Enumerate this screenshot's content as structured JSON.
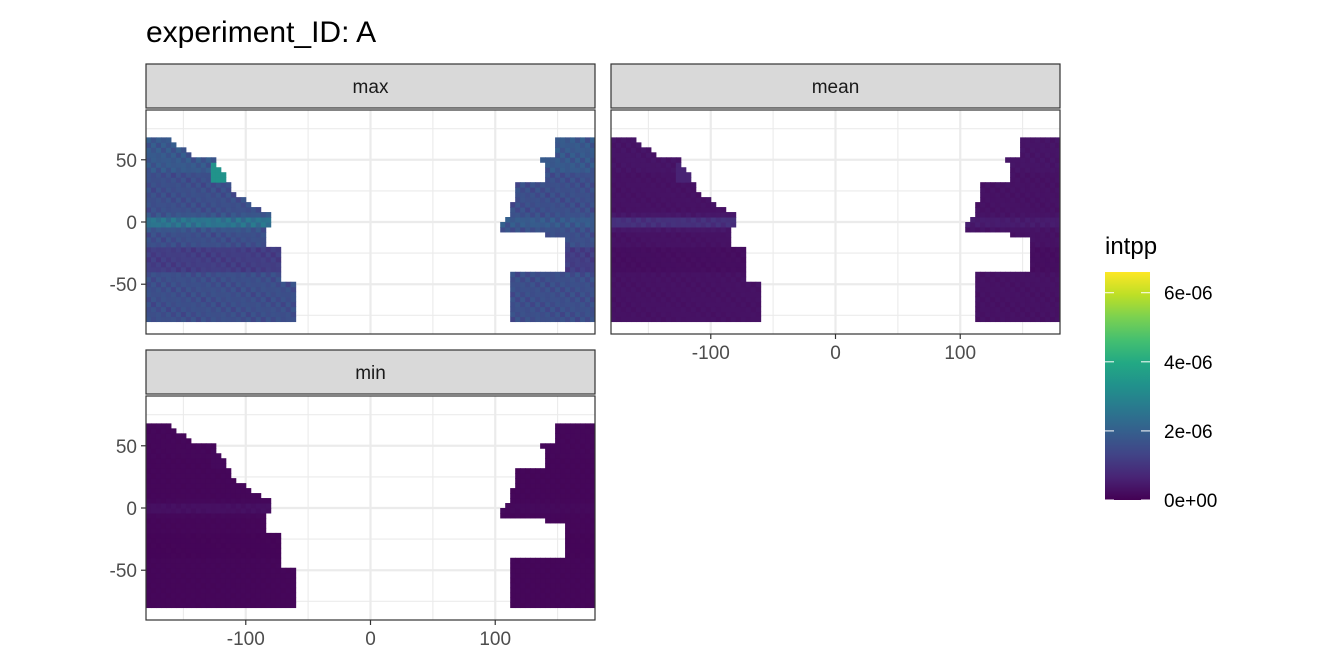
{
  "chart_data": {
    "type": "heatmap",
    "title": "experiment_ID: A",
    "xlabel": "",
    "ylabel": "",
    "xlim": [
      -180,
      180
    ],
    "ylim": [
      -90,
      90
    ],
    "x_ticks": [
      -100,
      0,
      100
    ],
    "x_tick_labels": [
      "-100",
      "0",
      "100"
    ],
    "y_ticks": [
      50,
      0,
      -50
    ],
    "y_tick_labels": [
      "50",
      "0",
      "-50"
    ],
    "grid": true,
    "facets": [
      {
        "label": "max",
        "approx_ocean_value": 1.5e-06,
        "equatorial_value": 2.6e-06,
        "coastal_upwelling_value": 4.2e-06
      },
      {
        "label": "mean",
        "approx_ocean_value": 3e-07,
        "equatorial_value": 1e-06,
        "coastal_upwelling_value": 8e-07
      },
      {
        "label": "min",
        "approx_ocean_value": 1e-07,
        "equatorial_value": 3e-07,
        "coastal_upwelling_value": 2e-07
      }
    ],
    "legend": {
      "title": "intpp",
      "placement": "right",
      "colormap": "viridis",
      "range": [
        0,
        6.6e-06
      ],
      "breaks": [
        6e-06,
        4e-06,
        2e-06,
        0
      ],
      "break_labels": [
        "6e-06",
        "4e-06",
        "2e-06",
        "0e+00"
      ]
    }
  },
  "colors": {
    "strip_background": "#d9d9d9",
    "panel_border": "#333333",
    "grid": "#ebebeb",
    "viridis_low": "#440154",
    "viridis_high": "#fde725"
  }
}
